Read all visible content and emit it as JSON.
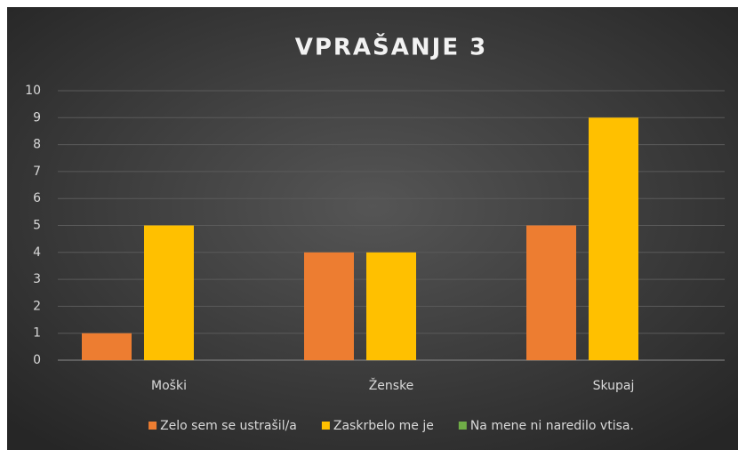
{
  "chart_data": {
    "type": "bar",
    "title": "VPRAŠANJE 3",
    "categories": [
      "Moški",
      "Ženske",
      "Skupaj"
    ],
    "series": [
      {
        "name": "Zelo sem se ustrašil/a",
        "color": "#ed7d31",
        "values": [
          1,
          4,
          5
        ]
      },
      {
        "name": "Zaskrbelo me je",
        "color": "#ffc000",
        "values": [
          5,
          4,
          9
        ]
      },
      {
        "name": "Na mene ni naredilo vtisa.",
        "color": "#70ad47",
        "values": [
          0,
          0,
          0
        ]
      }
    ],
    "ylim": [
      0,
      10
    ],
    "yticks": [
      0,
      1,
      2,
      3,
      4,
      5,
      6,
      7,
      8,
      9,
      10
    ],
    "grid": true,
    "legend": "bottom"
  }
}
